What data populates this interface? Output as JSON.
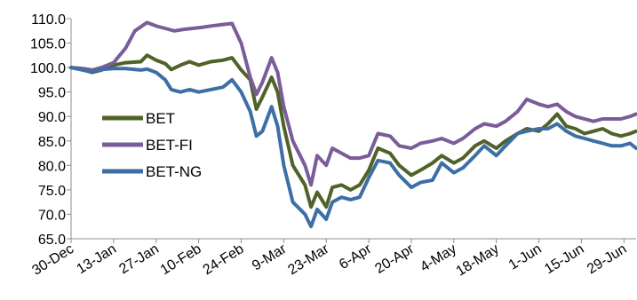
{
  "chart_data": {
    "type": "line",
    "title": "",
    "xlabel": "",
    "ylabel": "",
    "ylim": [
      65,
      110
    ],
    "yticks": [
      "65.0",
      "70.0",
      "75.0",
      "80.0",
      "85.0",
      "90.0",
      "95.0",
      "100.0",
      "105.0",
      "110.0"
    ],
    "x_start": "30-Dec",
    "x_end": "03-Jul",
    "x_tick_labels": [
      "30-Dec",
      "13-Jan",
      "27-Jan",
      "10-Feb",
      "24-Feb",
      "9-Mar",
      "23-Mar",
      "6-Apr",
      "20-Apr",
      "4-May",
      "18-May",
      "1-Jun",
      "15-Jun",
      "29-Jun"
    ],
    "grid": false,
    "legend_position": "middle-left",
    "series": [
      {
        "name": "BET",
        "color": "#4f6228",
        "points": [
          [
            "30-Dec",
            100.0
          ],
          [
            "03-Jan",
            99.5
          ],
          [
            "06-Jan",
            99.0
          ],
          [
            "09-Jan",
            99.5
          ],
          [
            "13-Jan",
            100.5
          ],
          [
            "17-Jan",
            101.0
          ],
          [
            "22-Jan",
            101.2
          ],
          [
            "24-Jan",
            102.5
          ],
          [
            "27-Jan",
            101.5
          ],
          [
            "30-Jan",
            100.8
          ],
          [
            "01-Feb",
            99.6
          ],
          [
            "04-Feb",
            100.5
          ],
          [
            "07-Feb",
            101.2
          ],
          [
            "10-Feb",
            100.5
          ],
          [
            "14-Feb",
            101.2
          ],
          [
            "18-Feb",
            101.5
          ],
          [
            "21-Feb",
            102.0
          ],
          [
            "24-Feb",
            99.5
          ],
          [
            "27-Feb",
            97.5
          ],
          [
            "29-Feb",
            91.5
          ],
          [
            "02-Mar",
            94.0
          ],
          [
            "05-Mar",
            98.0
          ],
          [
            "07-Mar",
            95.0
          ],
          [
            "09-Mar",
            88.0
          ],
          [
            "12-Mar",
            80.0
          ],
          [
            "16-Mar",
            76.0
          ],
          [
            "18-Mar",
            71.5
          ],
          [
            "20-Mar",
            74.5
          ],
          [
            "23-Mar",
            71.5
          ],
          [
            "25-Mar",
            75.5
          ],
          [
            "28-Mar",
            76.0
          ],
          [
            "31-Mar",
            75.0
          ],
          [
            "03-Apr",
            76.0
          ],
          [
            "06-Apr",
            79.0
          ],
          [
            "09-Apr",
            83.5
          ],
          [
            "13-Apr",
            82.5
          ],
          [
            "16-Apr",
            80.0
          ],
          [
            "20-Apr",
            78.0
          ],
          [
            "23-Apr",
            79.0
          ],
          [
            "27-Apr",
            80.5
          ],
          [
            "30-Apr",
            82.0
          ],
          [
            "04-May",
            80.5
          ],
          [
            "07-May",
            81.5
          ],
          [
            "11-May",
            84.0
          ],
          [
            "14-May",
            85.0
          ],
          [
            "18-May",
            83.5
          ],
          [
            "21-May",
            85.0
          ],
          [
            "25-May",
            86.5
          ],
          [
            "28-May",
            87.5
          ],
          [
            "01-Jun",
            87.0
          ],
          [
            "04-Jun",
            88.5
          ],
          [
            "07-Jun",
            90.5
          ],
          [
            "10-Jun",
            88.0
          ],
          [
            "13-Jun",
            87.5
          ],
          [
            "16-Jun",
            86.5
          ],
          [
            "19-Jun",
            87.0
          ],
          [
            "22-Jun",
            87.5
          ],
          [
            "25-Jun",
            86.5
          ],
          [
            "28-Jun",
            86.0
          ],
          [
            "01-Jul",
            86.5
          ],
          [
            "03-Jul",
            87.0
          ]
        ]
      },
      {
        "name": "BET-FI",
        "color": "#7b5c9a",
        "points": [
          [
            "30-Dec",
            100.0
          ],
          [
            "03-Jan",
            99.8
          ],
          [
            "06-Jan",
            99.5
          ],
          [
            "09-Jan",
            100.0
          ],
          [
            "13-Jan",
            101.0
          ],
          [
            "17-Jan",
            104.0
          ],
          [
            "20-Jan",
            107.5
          ],
          [
            "24-Jan",
            109.2
          ],
          [
            "27-Jan",
            108.5
          ],
          [
            "30-Jan",
            108.0
          ],
          [
            "02-Feb",
            107.5
          ],
          [
            "05-Feb",
            107.8
          ],
          [
            "08-Feb",
            108.0
          ],
          [
            "11-Feb",
            108.2
          ],
          [
            "14-Feb",
            108.5
          ],
          [
            "18-Feb",
            108.8
          ],
          [
            "21-Feb",
            109.0
          ],
          [
            "24-Feb",
            105.0
          ],
          [
            "27-Feb",
            98.0
          ],
          [
            "29-Feb",
            94.5
          ],
          [
            "02-Mar",
            97.0
          ],
          [
            "05-Mar",
            102.0
          ],
          [
            "07-Mar",
            99.0
          ],
          [
            "09-Mar",
            92.0
          ],
          [
            "12-Mar",
            85.0
          ],
          [
            "16-Mar",
            80.0
          ],
          [
            "18-Mar",
            76.0
          ],
          [
            "20-Mar",
            82.0
          ],
          [
            "23-Mar",
            80.0
          ],
          [
            "25-Mar",
            83.5
          ],
          [
            "28-Mar",
            82.5
          ],
          [
            "31-Mar",
            81.5
          ],
          [
            "03-Apr",
            81.5
          ],
          [
            "06-Apr",
            82.0
          ],
          [
            "09-Apr",
            86.5
          ],
          [
            "13-Apr",
            86.0
          ],
          [
            "16-Apr",
            84.0
          ],
          [
            "20-Apr",
            83.5
          ],
          [
            "23-Apr",
            84.5
          ],
          [
            "27-Apr",
            85.0
          ],
          [
            "30-Apr",
            85.5
          ],
          [
            "04-May",
            84.5
          ],
          [
            "07-May",
            85.5
          ],
          [
            "11-May",
            87.5
          ],
          [
            "14-May",
            88.5
          ],
          [
            "18-May",
            88.0
          ],
          [
            "21-May",
            89.0
          ],
          [
            "25-May",
            91.0
          ],
          [
            "28-May",
            93.5
          ],
          [
            "01-Jun",
            92.5
          ],
          [
            "04-Jun",
            92.0
          ],
          [
            "07-Jun",
            92.5
          ],
          [
            "10-Jun",
            91.0
          ],
          [
            "13-Jun",
            90.0
          ],
          [
            "16-Jun",
            89.5
          ],
          [
            "19-Jun",
            89.0
          ],
          [
            "22-Jun",
            89.5
          ],
          [
            "25-Jun",
            89.5
          ],
          [
            "28-Jun",
            89.5
          ],
          [
            "01-Jul",
            90.0
          ],
          [
            "03-Jul",
            90.5
          ]
        ]
      },
      {
        "name": "BET-NG",
        "color": "#3d6fa6",
        "points": [
          [
            "30-Dec",
            100.0
          ],
          [
            "03-Jan",
            99.5
          ],
          [
            "06-Jan",
            99.2
          ],
          [
            "09-Jan",
            99.6
          ],
          [
            "13-Jan",
            99.8
          ],
          [
            "17-Jan",
            99.8
          ],
          [
            "22-Jan",
            99.5
          ],
          [
            "24-Jan",
            99.7
          ],
          [
            "27-Jan",
            99.0
          ],
          [
            "30-Jan",
            97.5
          ],
          [
            "01-Feb",
            95.5
          ],
          [
            "04-Feb",
            95.0
          ],
          [
            "07-Feb",
            95.5
          ],
          [
            "10-Feb",
            95.0
          ],
          [
            "14-Feb",
            95.5
          ],
          [
            "18-Feb",
            96.0
          ],
          [
            "21-Feb",
            97.5
          ],
          [
            "24-Feb",
            95.0
          ],
          [
            "27-Feb",
            91.0
          ],
          [
            "29-Feb",
            86.0
          ],
          [
            "02-Mar",
            87.0
          ],
          [
            "05-Mar",
            92.0
          ],
          [
            "07-Mar",
            88.0
          ],
          [
            "09-Mar",
            80.0
          ],
          [
            "12-Mar",
            72.5
          ],
          [
            "16-Mar",
            70.0
          ],
          [
            "18-Mar",
            67.5
          ],
          [
            "20-Mar",
            71.0
          ],
          [
            "23-Mar",
            69.0
          ],
          [
            "25-Mar",
            72.5
          ],
          [
            "28-Mar",
            73.5
          ],
          [
            "31-Mar",
            73.0
          ],
          [
            "03-Apr",
            73.5
          ],
          [
            "06-Apr",
            77.5
          ],
          [
            "09-Apr",
            81.0
          ],
          [
            "13-Apr",
            80.5
          ],
          [
            "16-Apr",
            78.0
          ],
          [
            "20-Apr",
            75.5
          ],
          [
            "23-Apr",
            76.5
          ],
          [
            "27-Apr",
            77.0
          ],
          [
            "30-Apr",
            80.5
          ],
          [
            "04-May",
            78.5
          ],
          [
            "07-May",
            79.5
          ],
          [
            "11-May",
            82.0
          ],
          [
            "14-May",
            84.0
          ],
          [
            "18-May",
            82.0
          ],
          [
            "21-May",
            84.0
          ],
          [
            "25-May",
            86.5
          ],
          [
            "28-May",
            87.0
          ],
          [
            "01-Jun",
            87.5
          ],
          [
            "04-Jun",
            87.5
          ],
          [
            "07-Jun",
            88.5
          ],
          [
            "10-Jun",
            87.0
          ],
          [
            "13-Jun",
            86.0
          ],
          [
            "16-Jun",
            85.5
          ],
          [
            "19-Jun",
            85.0
          ],
          [
            "22-Jun",
            84.5
          ],
          [
            "25-Jun",
            84.0
          ],
          [
            "28-Jun",
            84.0
          ],
          [
            "01-Jul",
            84.5
          ],
          [
            "03-Jul",
            83.5
          ]
        ]
      }
    ]
  }
}
